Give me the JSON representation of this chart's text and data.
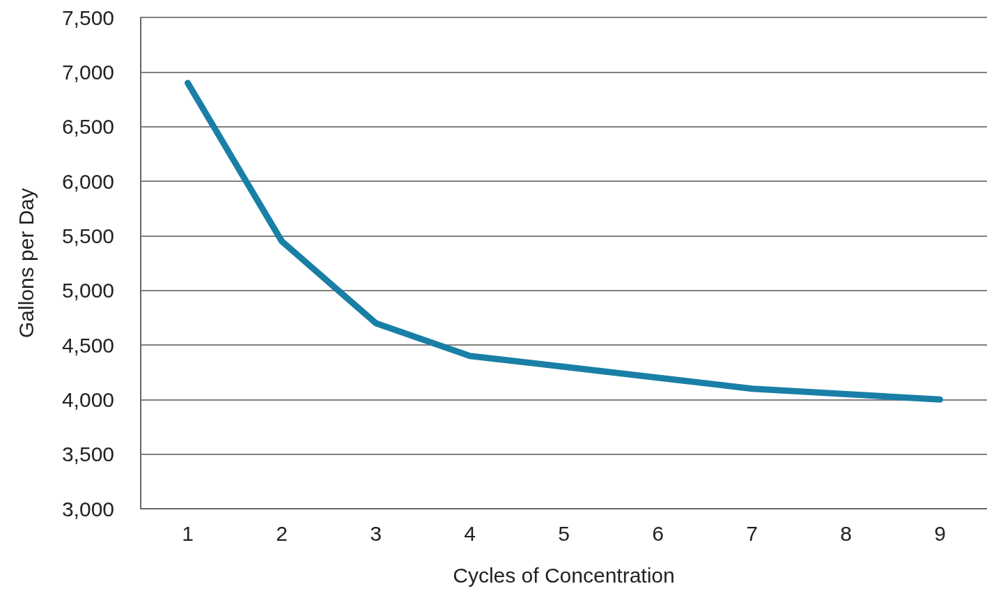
{
  "chart_data": {
    "type": "line",
    "xlabel": "Cycles of Concentration",
    "ylabel": "Gallons per Day",
    "categories": [
      "1",
      "2",
      "3",
      "4",
      "5",
      "6",
      "7",
      "8",
      "9"
    ],
    "series": [
      {
        "color": "#1a7fa6",
        "values": [
          6900,
          5450,
          4700,
          4400,
          4300,
          4200,
          4100,
          4050,
          4000
        ]
      }
    ],
    "ylim": [
      3000,
      7500
    ],
    "yticks": [
      {
        "value": 3000,
        "label": "3,000"
      },
      {
        "value": 3500,
        "label": "3,500"
      },
      {
        "value": 4000,
        "label": "4,000"
      },
      {
        "value": 4500,
        "label": "4,500"
      },
      {
        "value": 5000,
        "label": "5,000"
      },
      {
        "value": 5500,
        "label": "5,500"
      },
      {
        "value": 6000,
        "label": "6,000"
      },
      {
        "value": 6500,
        "label": "6,500"
      },
      {
        "value": 7000,
        "label": "7,000"
      },
      {
        "value": 7500,
        "label": "7,500"
      }
    ],
    "grid": "y",
    "line_style": "solid"
  }
}
